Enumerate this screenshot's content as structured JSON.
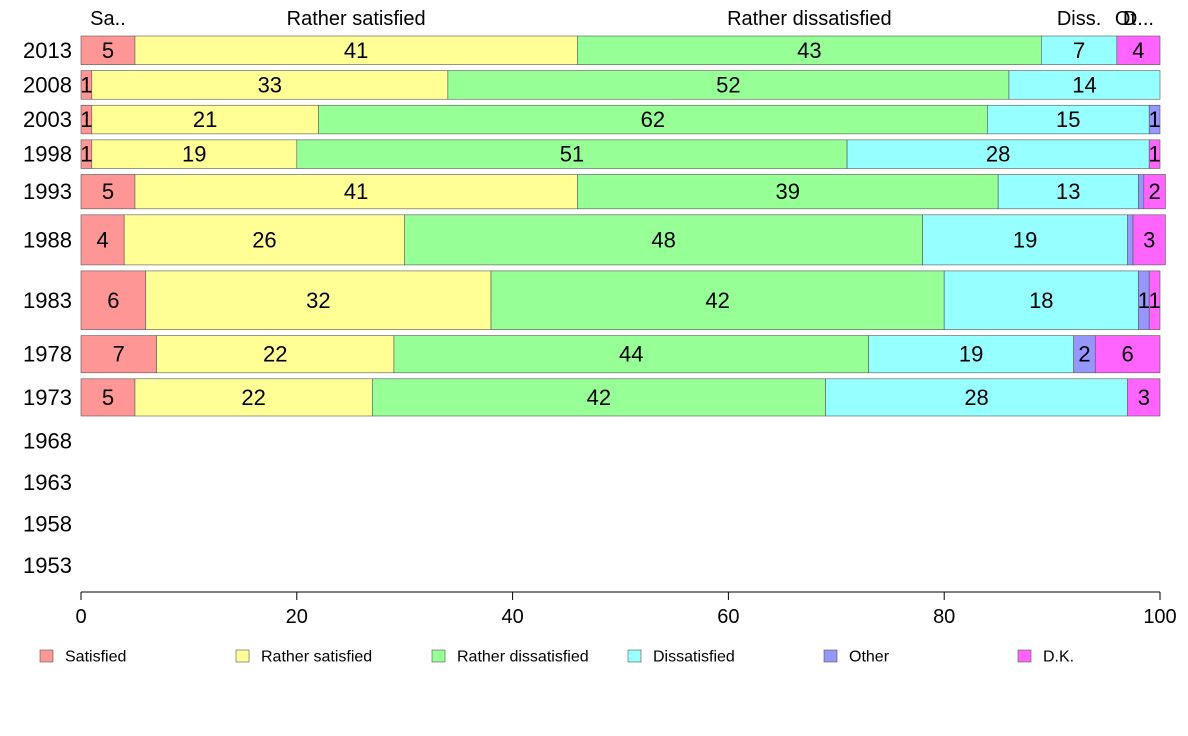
{
  "chart_data": {
    "type": "bar",
    "orientation": "horizontal",
    "stacked": true,
    "categories": [
      "2013",
      "2008",
      "2003",
      "1998",
      "1993",
      "1988",
      "1983",
      "1978",
      "1973",
      "1968",
      "1963",
      "1958",
      "1953"
    ],
    "series": [
      {
        "name": "Satisfied",
        "color": "#ff9696",
        "values": [
          5,
          1,
          1,
          1,
          5,
          4,
          6,
          7,
          5,
          null,
          null,
          null,
          null
        ]
      },
      {
        "name": "Rather satisfied",
        "color": "#ffff96",
        "values": [
          41,
          33,
          21,
          19,
          41,
          26,
          32,
          22,
          22,
          null,
          null,
          null,
          null
        ]
      },
      {
        "name": "Rather dissatisfied",
        "color": "#96ff96",
        "values": [
          43,
          52,
          62,
          51,
          39,
          48,
          42,
          44,
          42,
          null,
          null,
          null,
          null
        ]
      },
      {
        "name": "Dissatisfied",
        "color": "#96ffff",
        "values": [
          7,
          14,
          15,
          28,
          13,
          19,
          18,
          19,
          28,
          null,
          null,
          null,
          null
        ]
      },
      {
        "name": "Other",
        "color": "#9696ff",
        "values": [
          0,
          0,
          1,
          0,
          0.5,
          0.5,
          1,
          2,
          0,
          null,
          null,
          null,
          null
        ]
      },
      {
        "name": "D.K.",
        "color": "#ff64ff",
        "values": [
          4,
          0,
          0,
          1,
          2,
          3,
          1,
          6,
          3,
          null,
          null,
          null,
          null
        ]
      }
    ],
    "segment_labels": [
      [
        "5",
        "41",
        "43",
        "7",
        "",
        "4"
      ],
      [
        "1",
        "33",
        "52",
        "14",
        "",
        ""
      ],
      [
        "1",
        "21",
        "62",
        "15",
        "1",
        ""
      ],
      [
        "1",
        "19",
        "51",
        "28",
        "",
        "1"
      ],
      [
        "5",
        "41",
        "39",
        "13",
        "",
        "2"
      ],
      [
        "4",
        "26",
        "48",
        "19",
        "",
        "3"
      ],
      [
        "6",
        "32",
        "42",
        "18",
        "1",
        "1"
      ],
      [
        "7",
        "22",
        "44",
        "19",
        "2",
        "6"
      ],
      [
        "5",
        "22",
        "42",
        "28",
        "",
        "3"
      ]
    ],
    "bar_weights": [
      1.0,
      1.0,
      1.0,
      1.0,
      1.2,
      1.75,
      2.05,
      1.3,
      1.3
    ],
    "header_labels": [
      "Sa..",
      "Rather satisfied",
      "Rather dissatisfied",
      "Diss.",
      "Ot",
      "D..."
    ],
    "xlim": [
      0,
      100
    ],
    "xticks": [
      0,
      20,
      40,
      60,
      80,
      100
    ],
    "xlabel": "",
    "ylabel": "",
    "title": "",
    "legend_position": "bottom",
    "grid": false
  }
}
